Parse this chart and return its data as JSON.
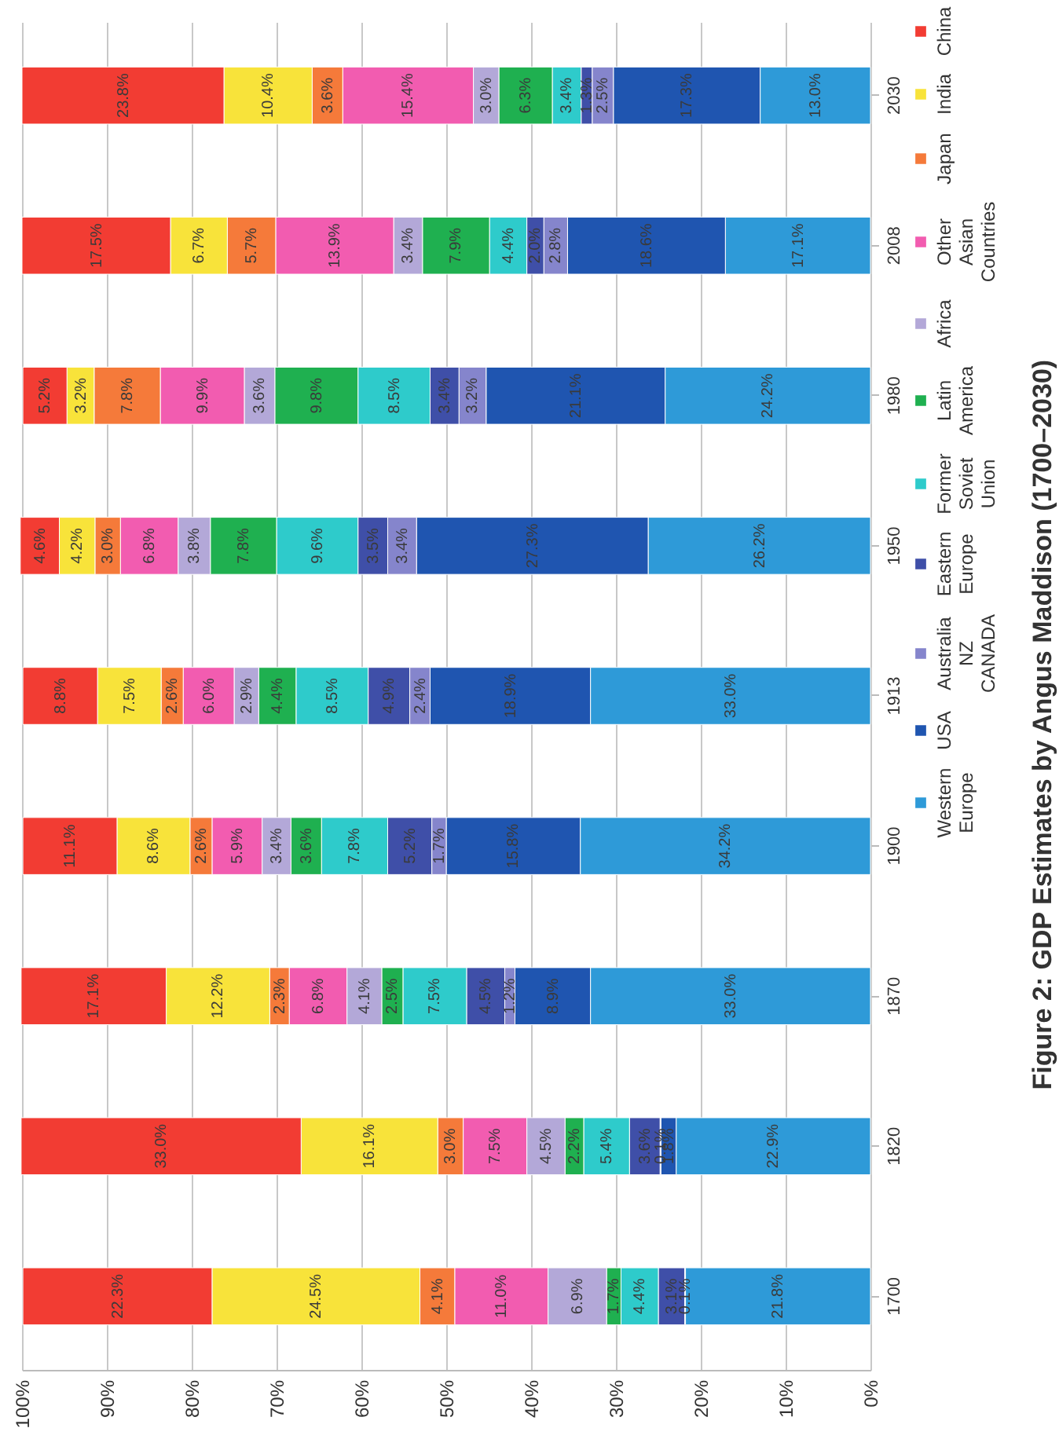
{
  "chart_data": {
    "type": "bar",
    "title": "Figure  2: GDP Estimates by Angus Maddison (1700–2030)",
    "stacked": true,
    "orientation": "horizontal",
    "categories": [
      "2030",
      "2008",
      "1980",
      "1950",
      "1913",
      "1900",
      "1870",
      "1820",
      "1700"
    ],
    "xlim": [
      100,
      0
    ],
    "xticks": [
      {
        "value": 100,
        "label": "100%"
      },
      {
        "value": 90,
        "label": "90%"
      },
      {
        "value": 80,
        "label": "80%"
      },
      {
        "value": 70,
        "label": "70%"
      },
      {
        "value": 60,
        "label": "60%"
      },
      {
        "value": 50,
        "label": "50%"
      },
      {
        "value": 40,
        "label": "40%"
      },
      {
        "value": 30,
        "label": "30%"
      },
      {
        "value": 20,
        "label": "20%"
      },
      {
        "value": 10,
        "label": "10%"
      },
      {
        "value": 0,
        "label": "0%"
      }
    ],
    "grid": "x",
    "legend": "right",
    "series": [
      {
        "name": "Western Europe",
        "color": "#2e9ad8",
        "values": [
          13.0,
          17.1,
          24.2,
          26.2,
          33.0,
          34.2,
          33.0,
          22.9,
          21.8
        ],
        "value_labels": [
          "13.0%",
          "17.1%",
          "24.2%",
          "26.2%",
          "33.0%",
          "34.2%",
          "33.0%",
          "22.9%",
          "21.8%"
        ]
      },
      {
        "name": "USA",
        "color": "#1f55b0",
        "values": [
          17.3,
          18.6,
          21.1,
          27.3,
          18.9,
          15.8,
          8.9,
          1.8,
          0.1
        ],
        "value_labels": [
          "17.3%",
          "18.6%",
          "21.1%",
          "27.3%",
          "18.9%",
          "15.8%",
          "8.9%",
          "1.8%",
          "0.1%"
        ]
      },
      {
        "name": "Australia NZ CANADA",
        "color": "#8585cc",
        "values": [
          2.5,
          2.8,
          3.2,
          3.4,
          2.4,
          1.7,
          1.2,
          0.1,
          null
        ],
        "value_labels": [
          "2.5%",
          "2.8%",
          "3.2%",
          "3.4%",
          "2.4%",
          "1.7%",
          "1.2%",
          "0.1%",
          null
        ]
      },
      {
        "name": "Eastern Europe",
        "color": "#3f4fa8",
        "values": [
          1.3,
          2.0,
          3.4,
          3.5,
          4.9,
          5.2,
          4.5,
          3.6,
          3.1
        ],
        "value_labels": [
          "1.3%",
          "2.0%",
          "3.4%",
          "3.5%",
          "4.9%",
          "5.2%",
          "4.5%",
          "3.6%",
          "3.1%"
        ]
      },
      {
        "name": "Former Soviet Union",
        "color": "#2ecbcb",
        "values": [
          3.4,
          4.4,
          8.5,
          9.6,
          8.5,
          7.8,
          7.5,
          5.4,
          4.4
        ],
        "value_labels": [
          "3.4%",
          "4.4%",
          "8.5%",
          "9.6%",
          "8.5%",
          "7.8%",
          "7.5%",
          "5.4%",
          "4.4%"
        ]
      },
      {
        "name": "Latin America",
        "color": "#1fb050",
        "values": [
          6.3,
          7.9,
          9.8,
          7.8,
          4.4,
          3.6,
          2.5,
          2.2,
          1.7
        ],
        "value_labels": [
          "6.3%",
          "7.9%",
          "9.8%",
          "7.8%",
          "4.4%",
          "3.6%",
          "2.5%",
          "2.2%",
          "1.7%"
        ]
      },
      {
        "name": "Africa",
        "color": "#b3a8d8",
        "values": [
          3.0,
          3.4,
          3.6,
          3.8,
          2.9,
          3.4,
          4.1,
          4.5,
          6.9
        ],
        "value_labels": [
          "3.0%",
          "3.4%",
          "3.6%",
          "3.8%",
          "2.9%",
          "3.4%",
          "4.1%",
          "4.5%",
          "6.9%"
        ]
      },
      {
        "name": "Other Asian Countries",
        "color": "#f25cb0",
        "values": [
          15.4,
          13.9,
          9.9,
          6.8,
          6.0,
          5.9,
          6.8,
          7.5,
          11.0
        ],
        "value_labels": [
          "15.4%",
          "13.9%",
          "9.9%",
          "6.8%",
          "6.0%",
          "5.9%",
          "6.8%",
          "7.5%",
          "11.0%"
        ]
      },
      {
        "name": "Japan",
        "color": "#f57a3a",
        "values": [
          3.6,
          5.7,
          7.8,
          3.0,
          2.6,
          2.6,
          2.3,
          3.0,
          4.1
        ],
        "value_labels": [
          "3.6%",
          "5.7%",
          "7.8%",
          "3.0%",
          "2.6%",
          "2.6%",
          "2.3%",
          "3.0%",
          "4.1%"
        ]
      },
      {
        "name": "India",
        "color": "#f8e33a",
        "values": [
          10.4,
          6.7,
          3.2,
          4.2,
          7.5,
          8.6,
          12.2,
          16.1,
          24.5
        ],
        "value_labels": [
          "10.4%",
          "6.7%",
          "3.2%",
          "4.2%",
          "7.5%",
          "8.6%",
          "12.2%",
          "16.1%",
          "24.5%"
        ]
      },
      {
        "name": "China",
        "color": "#f23c33",
        "values": [
          23.8,
          17.5,
          5.2,
          4.6,
          8.8,
          11.1,
          17.1,
          33.0,
          22.3
        ],
        "value_labels": [
          "23.8%",
          "17.5%",
          "5.2%",
          "4.6%",
          "8.8%",
          "11.1%",
          "17.1%",
          "33.0%",
          "22.3%"
        ]
      }
    ]
  }
}
